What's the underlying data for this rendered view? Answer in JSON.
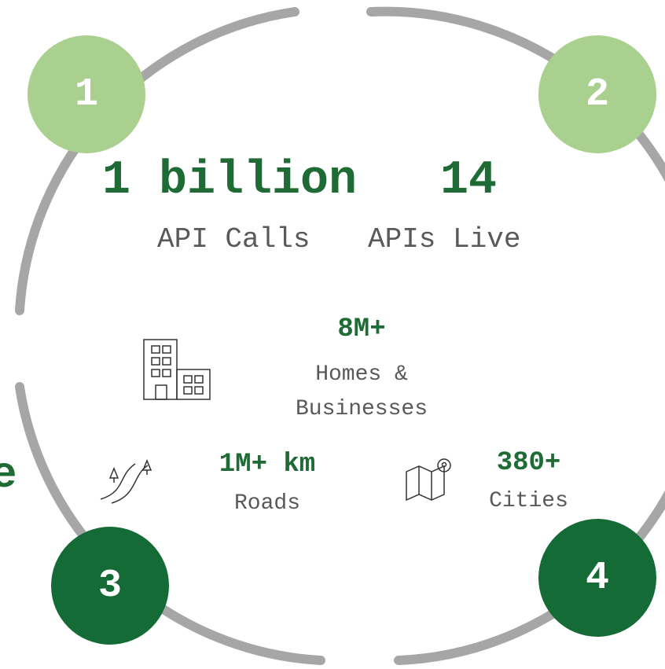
{
  "badges": [
    "1",
    "2",
    "3",
    "4"
  ],
  "stats": [
    {
      "value": "1 billion",
      "label": "API Calls"
    },
    {
      "value": "14",
      "label": "APIs Live"
    },
    {
      "value": "8M+",
      "label": "Homes & Businesses"
    },
    {
      "value": "1M+ km",
      "label": "Roads"
    },
    {
      "value": "380+",
      "label": "Cities"
    }
  ],
  "fragment": "e"
}
